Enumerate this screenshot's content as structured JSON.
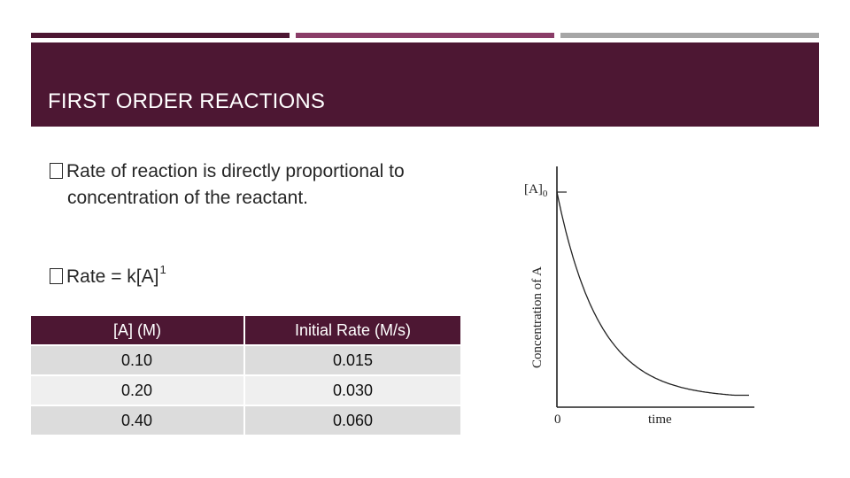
{
  "slide": {
    "title": "FIRST ORDER REACTIONS",
    "bullets": [
      {
        "text_line1": "Rate of reaction is directly proportional to",
        "text_line2": "concentration of the reactant."
      },
      {
        "text": "Rate = k[A]",
        "superscript": "1"
      }
    ]
  },
  "table": {
    "headers": [
      "[A] (M)",
      "Initial Rate (M/s)"
    ],
    "rows": [
      [
        "0.10",
        "0.015"
      ],
      [
        "0.20",
        "0.030"
      ],
      [
        "0.40",
        "0.060"
      ]
    ]
  },
  "chart_data": {
    "type": "line",
    "xlabel": "time",
    "ylabel": "Concentration of A",
    "y0_label": "[A]0",
    "x0_label": "0",
    "curve": "exponential decay",
    "colors": {
      "line": "#222222",
      "accent": "#4d1733"
    }
  }
}
